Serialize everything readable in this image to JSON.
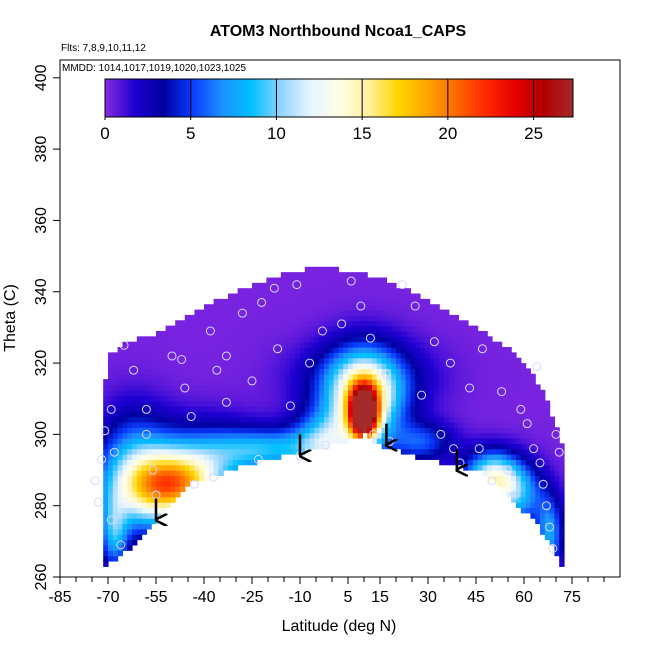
{
  "chart_data": {
    "type": "heatmap",
    "title": "ATOM3 Northbound Ncoa1_CAPS",
    "subtitle_flights": "Flts: 7,8,9,10,11,12",
    "subtitle_dates": "MMDD: 1014,1017,1019,1020,1023,1025",
    "xlabel": "Latitude (deg N)",
    "ylabel": "Theta (C)",
    "xlim": [
      -85,
      90
    ],
    "ylim": [
      260,
      405
    ],
    "x_ticks": [
      -85,
      -70,
      -55,
      -40,
      -25,
      -10,
      5,
      15,
      30,
      45,
      60,
      75
    ],
    "x_minor_ticks": [
      -80,
      -75,
      -65,
      -60,
      -50,
      -45,
      -35,
      -30,
      -20,
      -15,
      -5,
      0,
      10,
      20,
      25,
      35,
      40,
      50,
      55,
      65,
      70,
      80,
      85
    ],
    "y_ticks": [
      260,
      280,
      300,
      320,
      340,
      360,
      380,
      400
    ],
    "colorbar": {
      "range": [
        0,
        27.3
      ],
      "ticks": [
        0,
        5,
        10,
        15,
        20,
        25
      ],
      "colors": [
        "#8a2be2",
        "#1e00d2",
        "#0000a0",
        "#0a3cff",
        "#1e90ff",
        "#00bfff",
        "#8fd4ff",
        "#e6f4ff",
        "#ffffe6",
        "#fff0a0",
        "#ffd700",
        "#ffa500",
        "#ff6a00",
        "#ff2a00",
        "#e60000",
        "#b00000",
        "#a52a2a"
      ]
    },
    "boundary": {
      "top": [
        [
          -72,
          304
        ],
        [
          -70,
          322
        ],
        [
          -64,
          326
        ],
        [
          -55,
          328
        ],
        [
          -45,
          333
        ],
        [
          -35,
          338
        ],
        [
          -25,
          342
        ],
        [
          -15,
          345
        ],
        [
          -5,
          347
        ],
        [
          5,
          346
        ],
        [
          15,
          344
        ],
        [
          25,
          340
        ],
        [
          35,
          335
        ],
        [
          45,
          330
        ],
        [
          55,
          324
        ],
        [
          62,
          318
        ],
        [
          67,
          310
        ],
        [
          71,
          300
        ],
        [
          73,
          292
        ],
        [
          74,
          282
        ],
        [
          73,
          270
        ],
        [
          72,
          262
        ]
      ],
      "bottom": [
        [
          -72,
          262
        ],
        [
          -66,
          266
        ],
        [
          -60,
          270
        ],
        [
          -55,
          276
        ],
        [
          -45,
          286
        ],
        [
          -35,
          289
        ],
        [
          -25,
          292
        ],
        [
          -15,
          294
        ],
        [
          -5,
          296
        ],
        [
          5,
          298
        ],
        [
          10,
          300
        ],
        [
          15,
          297
        ],
        [
          25,
          294
        ],
        [
          35,
          292
        ],
        [
          45,
          290
        ],
        [
          52,
          286
        ],
        [
          58,
          280
        ],
        [
          64,
          275
        ],
        [
          69,
          268
        ],
        [
          72,
          262
        ]
      ]
    },
    "features": [
      {
        "lat": -58,
        "theta": 284,
        "value": 9,
        "sx": 10,
        "sy": 8
      },
      {
        "lat": -48,
        "theta": 286,
        "value": 11,
        "sx": 9,
        "sy": 6
      },
      {
        "lat": -40,
        "theta": 292,
        "value": 6,
        "sx": 12,
        "sy": 8
      },
      {
        "lat": -62,
        "theta": 294,
        "value": 5,
        "sx": 8,
        "sy": 10
      },
      {
        "lat": -20,
        "theta": 296,
        "value": 7,
        "sx": 12,
        "sy": 4
      },
      {
        "lat": -2,
        "theta": 298,
        "value": 8,
        "sx": 7,
        "sy": 6
      },
      {
        "lat": 10,
        "theta": 306,
        "value": 26,
        "sx": 3,
        "sy": 5
      },
      {
        "lat": 10,
        "theta": 310,
        "value": 14,
        "sx": 8,
        "sy": 9
      },
      {
        "lat": 10,
        "theta": 316,
        "value": 4,
        "sx": 14,
        "sy": 7
      },
      {
        "lat": 28,
        "theta": 298,
        "value": 5,
        "sx": 7,
        "sy": 4
      },
      {
        "lat": 50,
        "theta": 288,
        "value": 12,
        "sx": 6,
        "sy": 5
      },
      {
        "lat": 58,
        "theta": 283,
        "value": 7,
        "sx": 6,
        "sy": 6
      },
      {
        "lat": 68,
        "theta": 272,
        "value": 7,
        "sx": 3,
        "sy": 7
      },
      {
        "lat": -68,
        "theta": 272,
        "value": 7,
        "sx": 3,
        "sy": 7
      }
    ],
    "background_value": 0.3,
    "sample_points": [
      [
        -74,
        287
      ],
      [
        -73,
        281
      ],
      [
        -72,
        293
      ],
      [
        -71,
        301
      ],
      [
        -69,
        307
      ],
      [
        -68,
        295
      ],
      [
        -69,
        276
      ],
      [
        -66,
        269
      ],
      [
        -65,
        325
      ],
      [
        -62,
        318
      ],
      [
        -58,
        307
      ],
      [
        -58,
        300
      ],
      [
        -56,
        290
      ],
      [
        -55,
        283
      ],
      [
        -50,
        322
      ],
      [
        -47,
        321
      ],
      [
        -46,
        313
      ],
      [
        -44,
        305
      ],
      [
        -43,
        286
      ],
      [
        -38,
        329
      ],
      [
        -37,
        288
      ],
      [
        -36,
        318
      ],
      [
        -33,
        322
      ],
      [
        -33,
        309
      ],
      [
        -28,
        334
      ],
      [
        -25,
        315
      ],
      [
        -23,
        293
      ],
      [
        -22,
        337
      ],
      [
        -18,
        341
      ],
      [
        -17,
        324
      ],
      [
        -13,
        308
      ],
      [
        -11,
        342
      ],
      [
        -10,
        294
      ],
      [
        -7,
        320
      ],
      [
        -3,
        329
      ],
      [
        -2,
        297
      ],
      [
        3,
        331
      ],
      [
        6,
        343
      ],
      [
        9,
        336
      ],
      [
        12,
        327
      ],
      [
        13,
        300
      ],
      [
        17,
        317
      ],
      [
        18,
        298
      ],
      [
        22,
        342
      ],
      [
        26,
        336
      ],
      [
        28,
        311
      ],
      [
        32,
        326
      ],
      [
        34,
        300
      ],
      [
        37,
        320
      ],
      [
        38,
        296
      ],
      [
        40,
        292
      ],
      [
        43,
        313
      ],
      [
        46,
        296
      ],
      [
        47,
        324
      ],
      [
        50,
        287
      ],
      [
        53,
        312
      ],
      [
        55,
        290
      ],
      [
        57,
        283
      ],
      [
        59,
        307
      ],
      [
        61,
        303
      ],
      [
        63,
        296
      ],
      [
        64,
        319
      ],
      [
        65,
        292
      ],
      [
        66,
        286
      ],
      [
        67,
        280
      ],
      [
        68,
        274
      ],
      [
        69,
        268
      ],
      [
        70,
        300
      ],
      [
        71,
        295
      ]
    ],
    "arrows": [
      {
        "lat": -55,
        "theta_from": 282,
        "theta_to": 276
      },
      {
        "lat": -10,
        "theta_from": 300,
        "theta_to": 294
      },
      {
        "lat": 17,
        "theta_from": 303,
        "theta_to": 297
      },
      {
        "lat": 39,
        "theta_from": 296,
        "theta_to": 290
      }
    ]
  }
}
